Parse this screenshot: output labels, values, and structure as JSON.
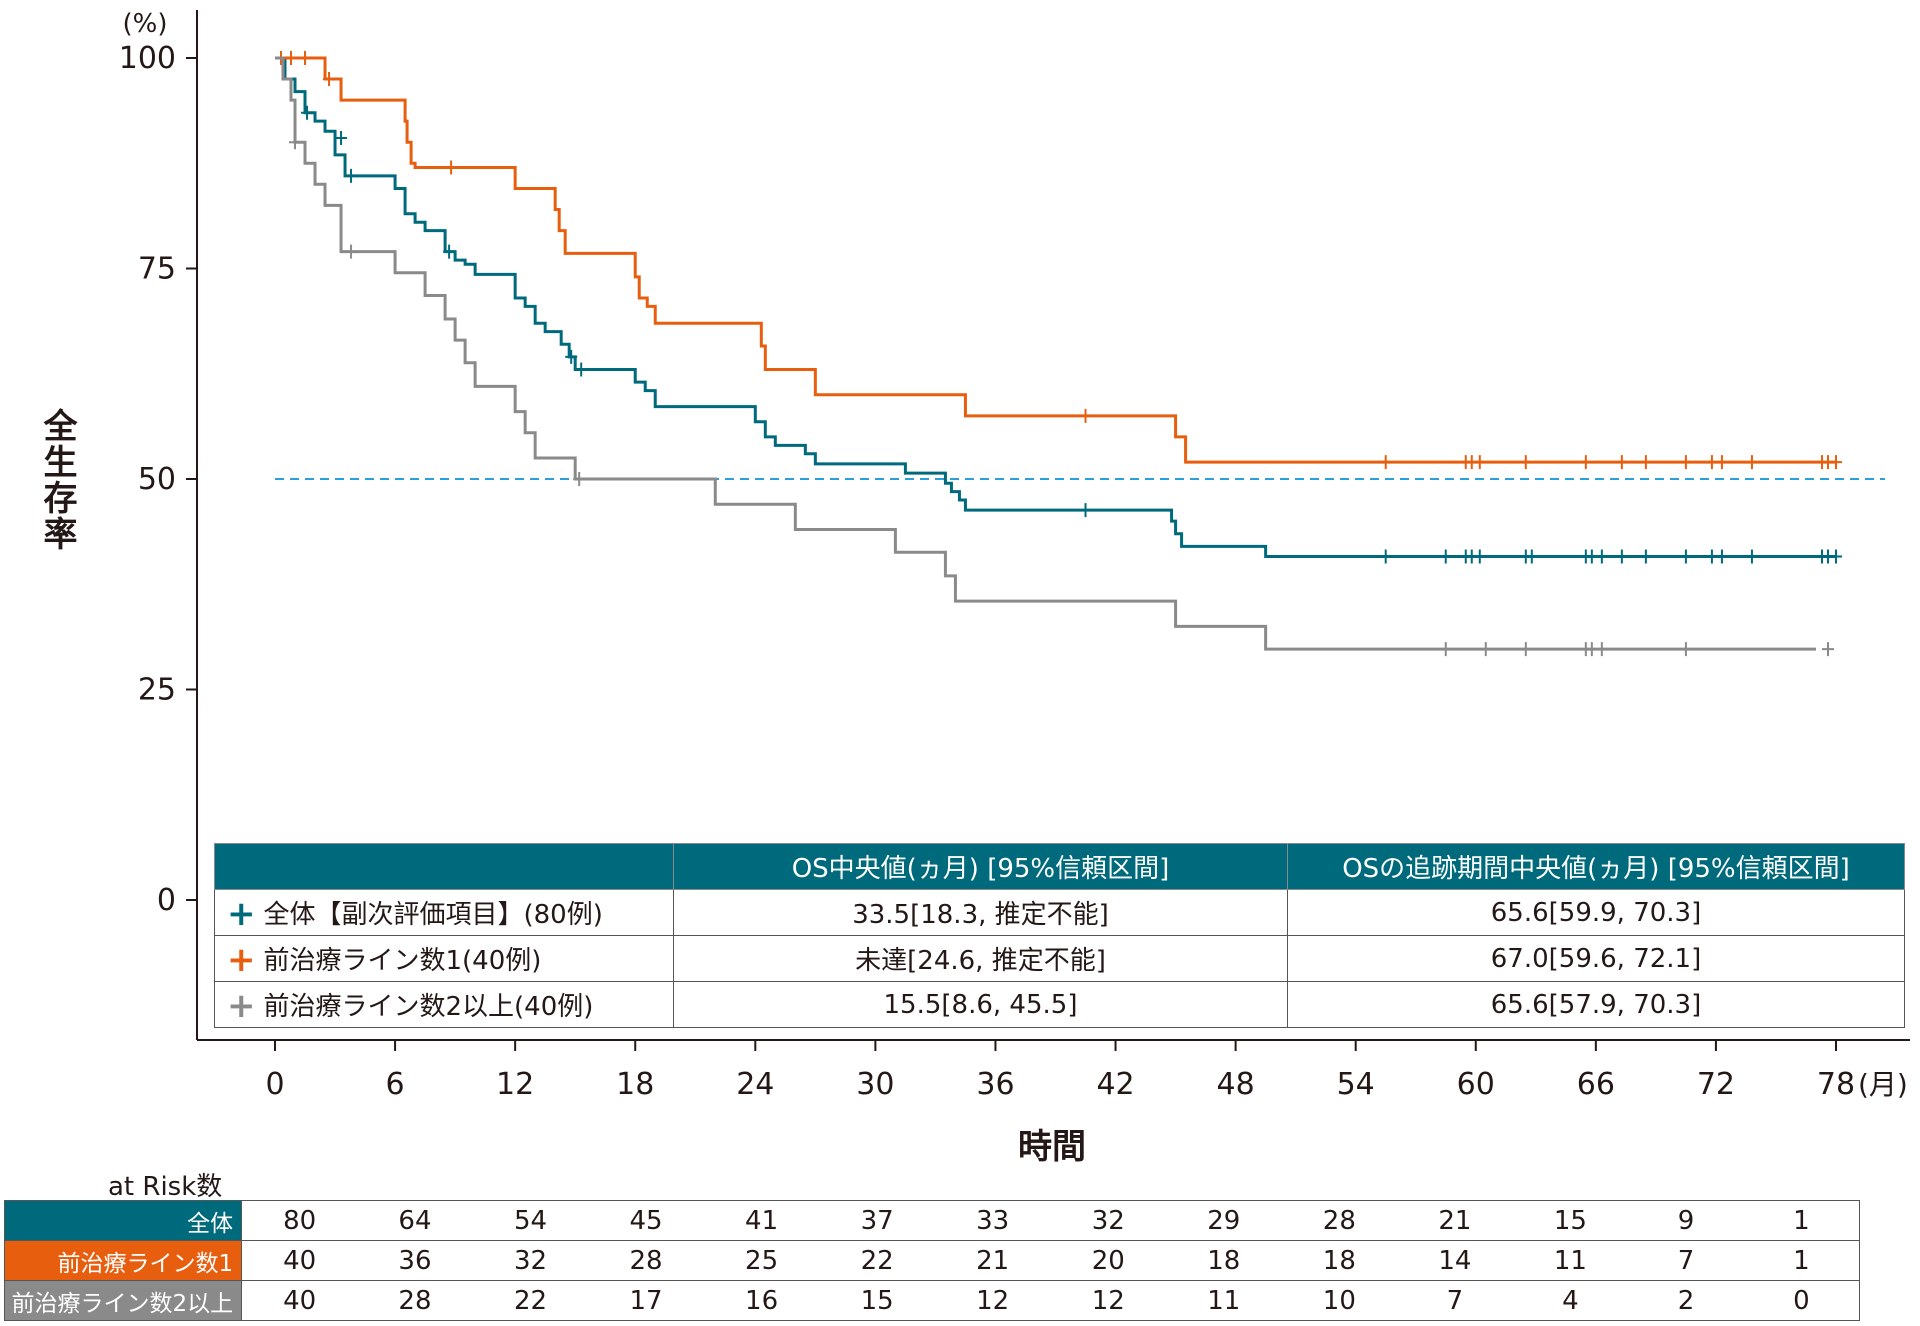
{
  "chart_data": {
    "type": "line",
    "subtype": "kaplan-meier step curve with censor marks",
    "y_unit": "(%)",
    "ylabel": "全生存率",
    "xlabel": "時間",
    "x_unit": "(月)",
    "ylim": [
      0,
      100
    ],
    "xlim": [
      0,
      78
    ],
    "yticks": [
      0,
      25,
      50,
      75,
      100
    ],
    "xticks": [
      0,
      6,
      12,
      18,
      24,
      30,
      36,
      42,
      48,
      54,
      60,
      66,
      72,
      78
    ],
    "reference_line": {
      "y": 50,
      "color": "#2a9fd8",
      "style": "dashed"
    },
    "grid": false,
    "series": [
      {
        "name": "全体【副次評価項目】(80例)",
        "color": "#006a7d",
        "steps": [
          [
            0,
            100
          ],
          [
            0.5,
            97.5
          ],
          [
            1.0,
            96.0
          ],
          [
            1.5,
            93.5
          ],
          [
            2.0,
            92.5
          ],
          [
            2.5,
            91.3
          ],
          [
            3.0,
            88.5
          ],
          [
            3.5,
            86.0
          ],
          [
            6.0,
            84.5
          ],
          [
            6.5,
            81.5
          ],
          [
            7.0,
            80.5
          ],
          [
            7.5,
            79.5
          ],
          [
            8.5,
            77.0
          ],
          [
            9.0,
            76.0
          ],
          [
            9.5,
            75.5
          ],
          [
            10.0,
            74.3
          ],
          [
            12.0,
            71.5
          ],
          [
            12.5,
            70.5
          ],
          [
            13.0,
            68.5
          ],
          [
            13.5,
            67.5
          ],
          [
            14.3,
            66.0
          ],
          [
            14.7,
            64.5
          ],
          [
            15.0,
            63.0
          ],
          [
            18.0,
            61.5
          ],
          [
            18.5,
            60.5
          ],
          [
            19.0,
            58.6
          ],
          [
            24.0,
            56.8
          ],
          [
            24.5,
            55.0
          ],
          [
            25.0,
            54.0
          ],
          [
            26.5,
            53.0
          ],
          [
            27.0,
            51.8
          ],
          [
            31.5,
            50.7
          ],
          [
            33.5,
            49.5
          ],
          [
            33.8,
            48.5
          ],
          [
            34.2,
            47.5
          ],
          [
            34.5,
            46.3
          ],
          [
            44.8,
            45.0
          ],
          [
            45.0,
            43.5
          ],
          [
            45.3,
            42.0
          ],
          [
            49.5,
            40.8
          ],
          [
            78,
            40.8
          ]
        ],
        "censors": [
          [
            1.6,
            93.5
          ],
          [
            3.3,
            90.5
          ],
          [
            3.8,
            86.0
          ],
          [
            8.7,
            77.0
          ],
          [
            14.8,
            64.5
          ],
          [
            15.3,
            63.0
          ],
          [
            40.5,
            46.3
          ],
          [
            55.5,
            40.8
          ],
          [
            58.5,
            40.8
          ],
          [
            59.5,
            40.8
          ],
          [
            59.8,
            40.8
          ],
          [
            60.2,
            40.8
          ],
          [
            62.5,
            40.8
          ],
          [
            62.8,
            40.8
          ],
          [
            65.5,
            40.8
          ],
          [
            65.8,
            40.8
          ],
          [
            66.3,
            40.8
          ],
          [
            67.3,
            40.8
          ],
          [
            68.5,
            40.8
          ],
          [
            70.5,
            40.8
          ],
          [
            71.8,
            40.8
          ],
          [
            72.3,
            40.8
          ],
          [
            73.8,
            40.8
          ],
          [
            77.3,
            40.8
          ],
          [
            77.6,
            40.8
          ],
          [
            78.0,
            40.8
          ]
        ]
      },
      {
        "name": "前治療ライン数1(40例)",
        "color": "#e85e0f",
        "steps": [
          [
            0,
            100
          ],
          [
            2.5,
            97.5
          ],
          [
            3.3,
            95.0
          ],
          [
            6.5,
            92.5
          ],
          [
            6.6,
            90.0
          ],
          [
            6.8,
            87.5
          ],
          [
            7.0,
            87.0
          ],
          [
            12.0,
            84.5
          ],
          [
            14.0,
            82.0
          ],
          [
            14.2,
            79.5
          ],
          [
            14.5,
            76.8
          ],
          [
            18.0,
            74.0
          ],
          [
            18.2,
            71.5
          ],
          [
            18.6,
            70.5
          ],
          [
            19.0,
            68.5
          ],
          [
            24.3,
            65.8
          ],
          [
            24.5,
            63.0
          ],
          [
            27.0,
            60.0
          ],
          [
            34.5,
            57.5
          ],
          [
            45.0,
            55.0
          ],
          [
            45.5,
            52.0
          ],
          [
            78,
            52.0
          ]
        ],
        "censors": [
          [
            0.3,
            100
          ],
          [
            0.8,
            100
          ],
          [
            1.5,
            100
          ],
          [
            2.7,
            97.5
          ],
          [
            8.8,
            87.0
          ],
          [
            40.5,
            57.5
          ],
          [
            55.5,
            52.0
          ],
          [
            59.5,
            52.0
          ],
          [
            59.8,
            52.0
          ],
          [
            60.2,
            52.0
          ],
          [
            62.5,
            52.0
          ],
          [
            65.5,
            52.0
          ],
          [
            67.3,
            52.0
          ],
          [
            68.5,
            52.0
          ],
          [
            70.5,
            52.0
          ],
          [
            71.8,
            52.0
          ],
          [
            72.3,
            52.0
          ],
          [
            73.8,
            52.0
          ],
          [
            77.3,
            52.0
          ],
          [
            77.6,
            52.0
          ],
          [
            78.0,
            52.0
          ]
        ]
      },
      {
        "name": "前治療ライン数2以上(40例)",
        "color": "#8a8a8a",
        "steps": [
          [
            0,
            100
          ],
          [
            0.4,
            97.5
          ],
          [
            0.8,
            95.0
          ],
          [
            1.0,
            90.0
          ],
          [
            1.5,
            87.5
          ],
          [
            2.0,
            85.0
          ],
          [
            2.5,
            82.5
          ],
          [
            3.3,
            77.0
          ],
          [
            6.0,
            74.5
          ],
          [
            7.5,
            71.8
          ],
          [
            8.5,
            69.0
          ],
          [
            9.0,
            66.5
          ],
          [
            9.5,
            63.8
          ],
          [
            10.0,
            61.0
          ],
          [
            12.0,
            58.0
          ],
          [
            12.5,
            55.5
          ],
          [
            13.0,
            52.5
          ],
          [
            15.0,
            50.0
          ],
          [
            22.0,
            47.0
          ],
          [
            26.0,
            44.0
          ],
          [
            31.0,
            41.3
          ],
          [
            33.5,
            38.5
          ],
          [
            34.0,
            35.5
          ],
          [
            45.0,
            32.5
          ],
          [
            49.5,
            29.8
          ],
          [
            77.0,
            29.8
          ]
        ],
        "censors": [
          [
            1.0,
            90.0
          ],
          [
            3.8,
            77.0
          ],
          [
            15.2,
            50.0
          ],
          [
            58.5,
            29.8
          ],
          [
            60.5,
            29.8
          ],
          [
            62.5,
            29.8
          ],
          [
            65.5,
            29.8
          ],
          [
            65.8,
            29.8
          ],
          [
            66.3,
            29.8
          ],
          [
            70.5,
            29.8
          ],
          [
            77.6,
            29.8
          ]
        ]
      }
    ]
  },
  "summary_table": {
    "headers": [
      "",
      "OS中央値(ヵ月) [95%信頼区間]",
      "OSの追跡期間中央値(ヵ月) [95%信頼区間]"
    ],
    "rows": [
      {
        "marker": "+",
        "color": "#006a7d",
        "label": "全体【副次評価項目】(80例)",
        "os_median": "33.5[18.3, 推定不能]",
        "followup_median": "65.6[59.9, 70.3]"
      },
      {
        "marker": "+",
        "color": "#e85e0f",
        "label": "前治療ライン数1(40例)",
        "os_median": "未達[24.6, 推定不能]",
        "followup_median": "67.0[59.6, 72.1]"
      },
      {
        "marker": "+",
        "color": "#8a8a8a",
        "label": "前治療ライン数2以上(40例)",
        "os_median": "15.5[8.6, 45.5]",
        "followup_median": "65.6[57.9, 70.3]"
      }
    ]
  },
  "risk_table": {
    "caption": "at Risk数",
    "rows": [
      {
        "label": "全体",
        "color": "#006a7d",
        "values": [
          80,
          64,
          54,
          45,
          41,
          37,
          33,
          32,
          29,
          28,
          21,
          15,
          9,
          1
        ]
      },
      {
        "label": "前治療ライン数1",
        "color": "#e85e0f",
        "values": [
          40,
          36,
          32,
          28,
          25,
          22,
          21,
          20,
          18,
          18,
          14,
          11,
          7,
          1
        ]
      },
      {
        "label": "前治療ライン数2以上",
        "color": "#8a8a8a",
        "values": [
          40,
          28,
          22,
          17,
          16,
          15,
          12,
          12,
          11,
          10,
          7,
          4,
          2,
          0
        ]
      }
    ]
  }
}
